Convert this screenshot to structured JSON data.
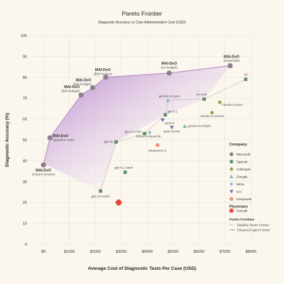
{
  "chart_data": {
    "type": "scatter",
    "title": "Pareto Frontier",
    "subtitle": "Diagnostic Accuracy vs Care Administration Cost (USD)",
    "xlabel": "Average Cost of Diagnostic Tests Per Case (USD)",
    "ylabel": "Diagnostic Accuracy (%)",
    "xlim": [
      -500,
      8100
    ],
    "ylim": [
      0,
      100
    ],
    "x_ticks": [
      0,
      1000,
      2000,
      3000,
      4000,
      5000,
      6000,
      7000,
      8000
    ],
    "x_tick_labels": [
      "$0",
      "$1000",
      "$2000",
      "$3000",
      "$4000",
      "$5000",
      "$6000",
      "$7000",
      "$8000"
    ],
    "y_ticks": [
      0,
      10,
      20,
      30,
      40,
      50,
      60,
      70,
      80,
      90,
      100
    ],
    "y_tick_labels": [
      "0",
      "10",
      "20",
      "30",
      "40",
      "50",
      "60",
      "70",
      "80",
      "90",
      "100"
    ],
    "grid": true,
    "legend_position": "right",
    "colors": {
      "Microsoft": "#8c7f8c",
      "Openai": "#5f8f6a",
      "Anthropic": "#9ba23e",
      "Google": "#7fb3b7",
      "Meta": "#88b4d8",
      "xAI": "#6b6fb0",
      "Deepseek": "#e89580",
      "Overall": "#e8483c",
      "baseline": "#999999",
      "enhanced": "#b98ccc",
      "fill_dark": "#ad78c8",
      "fill_light": "#f1e4f3"
    },
    "points": [
      {
        "company": "Microsoft",
        "name": "MAI-DxO",
        "sub": "(instant answer)",
        "x": 0,
        "y": 38
      },
      {
        "company": "Microsoft",
        "name": "MAI-DxO",
        "sub": "(question only)",
        "x": 250,
        "y": 51
      },
      {
        "company": "Microsoft",
        "name": "MAI-DxO",
        "sub": "($2k budget)",
        "x": 1450,
        "y": 71.5
      },
      {
        "company": "Microsoft",
        "name": "MAI-DxO",
        "sub": "($4k budget)",
        "x": 1900,
        "y": 75
      },
      {
        "company": "Microsoft",
        "name": "MAI-DxO",
        "sub": "($6k budget)",
        "x": 2400,
        "y": 80
      },
      {
        "company": "Microsoft",
        "name": "MAI-DxO",
        "sub": "(no budget)",
        "x": 4850,
        "y": 82
      },
      {
        "company": "Microsoft",
        "name": "MAI-DxO",
        "sub": "(ensemble)",
        "x": 7200,
        "y": 85.5
      },
      {
        "company": "Openai",
        "name": "o3",
        "x": 7800,
        "y": 79
      },
      {
        "company": "Openai",
        "name": "o4-mini",
        "x": 6200,
        "y": 69.5
      },
      {
        "company": "Openai",
        "name": "gpt-4.1",
        "x": 4700,
        "y": 62
      },
      {
        "company": "Openai",
        "name": "gpt-4.1-mini",
        "x": 3900,
        "y": 53
      },
      {
        "company": "Openai",
        "name": "gpt-4o",
        "x": 2800,
        "y": 49
      },
      {
        "company": "Openai",
        "name": "gpt-4.1-nano",
        "x": 3150,
        "y": 34.5
      },
      {
        "company": "Openai",
        "name": "gpt-3.5-turbo",
        "x": 2200,
        "y": 25.5
      },
      {
        "company": "Anthropic",
        "name": "claude-4-opus",
        "x": 6800,
        "y": 68
      },
      {
        "company": "Anthropic",
        "name": "claude-4-sonnet",
        "x": 6500,
        "y": 63
      },
      {
        "company": "Google",
        "name": "gemini-2.5-pro",
        "x": 4800,
        "y": 69
      },
      {
        "company": "Google",
        "name": "gemini-2.5-flash",
        "x": 5450,
        "y": 56.5
      },
      {
        "company": "Meta",
        "name": "llama-4-maverick",
        "x": 4100,
        "y": 53.5
      },
      {
        "company": "xAI",
        "name": "grok-3",
        "x": 4600,
        "y": 59.5
      },
      {
        "company": "xAI",
        "name": "grok-3-mini",
        "x": 4950,
        "y": 56
      },
      {
        "company": "Deepseek",
        "name": "deepseek-r1",
        "x": 4400,
        "y": 47.5
      },
      {
        "company": "Overall",
        "name": "Overall",
        "x": 2900,
        "y": 20
      }
    ],
    "series": [
      {
        "name": "Baseline Pareto Frontier",
        "style": "dotted",
        "points": [
          [
            2200,
            25.5
          ],
          [
            2800,
            49
          ],
          [
            3900,
            53
          ],
          [
            4700,
            62
          ],
          [
            4800,
            69
          ],
          [
            6200,
            69.5
          ],
          [
            7800,
            79
          ]
        ]
      },
      {
        "name": "Enhanced Agent Frontier",
        "style": "solid",
        "points": [
          [
            0,
            38
          ],
          [
            250,
            51
          ],
          [
            1450,
            71.5
          ],
          [
            1900,
            75
          ],
          [
            2400,
            80
          ],
          [
            4850,
            82
          ],
          [
            7200,
            85.5
          ]
        ]
      }
    ],
    "legend": {
      "company_title": "Company",
      "physicians_title": "Physicians",
      "frontiers_title": "Pareto Frontiers",
      "items": [
        {
          "company": "Microsoft",
          "label": "Microsoft",
          "marker": "circle"
        },
        {
          "company": "Openai",
          "label": "Openai",
          "marker": "square"
        },
        {
          "company": "Anthropic",
          "label": "Anthropic",
          "marker": "pentagon"
        },
        {
          "company": "Google",
          "label": "Google",
          "marker": "triangle-up"
        },
        {
          "company": "Meta",
          "label": "Meta",
          "marker": "diamond"
        },
        {
          "company": "xAI",
          "label": "xAI",
          "marker": "triangle-down"
        },
        {
          "company": "Deepseek",
          "label": "Deepseek",
          "marker": "circle"
        }
      ],
      "physician_item": {
        "company": "Overall",
        "label": "Overall",
        "marker": "plus"
      },
      "frontier_items": [
        {
          "label": "Baseline Pareto Frontier",
          "style": "dotted"
        },
        {
          "label": "Enhanced Agent Frontier",
          "style": "solid"
        }
      ]
    }
  }
}
